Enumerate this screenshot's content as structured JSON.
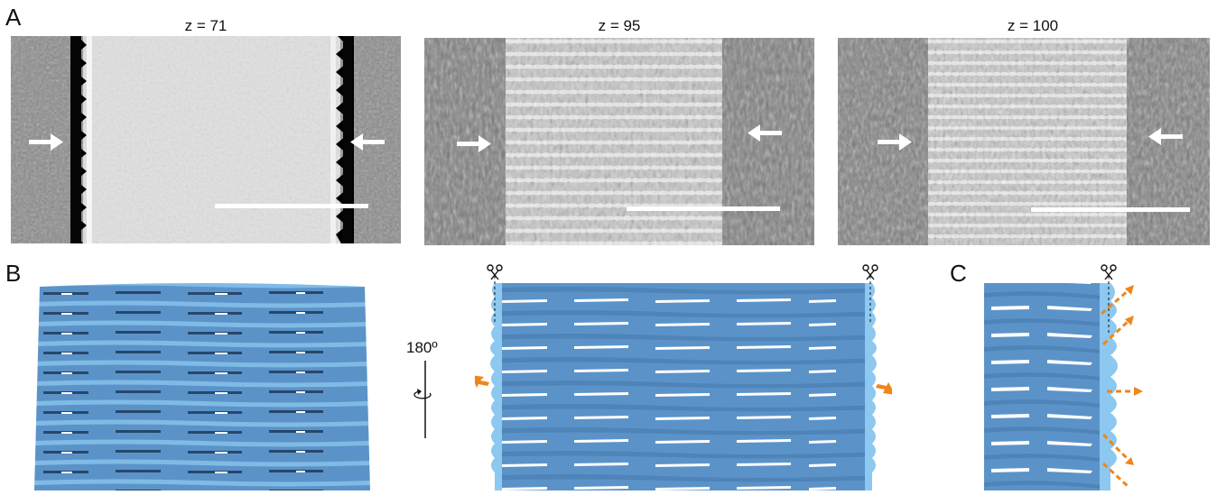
{
  "panels": {
    "A": "A",
    "B": "B",
    "C": "C"
  },
  "slices": [
    {
      "label": "z = 71"
    },
    {
      "label": "z = 95"
    },
    {
      "label": "z = 100"
    }
  ],
  "rotation": {
    "label": "180º"
  },
  "colors": {
    "surface": "#5b93c9",
    "surface_cut": "#8cc8f0",
    "arrow_orange": "#f08519",
    "arrow_white": "#ffffff"
  },
  "icons": {
    "scissors": "scissors-icon",
    "rotate": "rotate-icon"
  }
}
